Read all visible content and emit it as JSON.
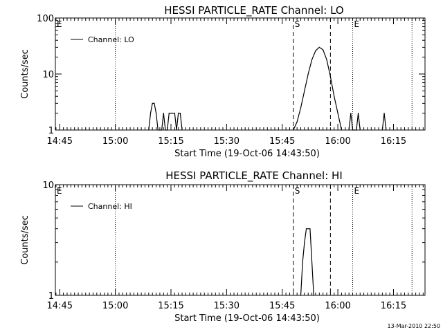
{
  "footer": {
    "timestamp": "13-Mar-2010 22:50"
  },
  "chart_data": [
    {
      "type": "line",
      "title": "HESSI PARTICLE_RATE Channel: LO",
      "xlabel": "Start Time (19-Oct-06 14:43:50)",
      "ylabel": "Counts/sec",
      "yscale": "log",
      "xlim": [
        "14:43:50",
        "16:23:30"
      ],
      "ylim": [
        1,
        100
      ],
      "x_ticks": [
        "14:45",
        "15:00",
        "15:15",
        "15:30",
        "15:45",
        "16:00",
        "16:15"
      ],
      "y_ticks": [
        "1",
        "10",
        "100"
      ],
      "legend": {
        "position": "top-left",
        "entries": [
          "Channel: LO"
        ]
      },
      "markers": [
        {
          "label": "E",
          "time": "14:43:50",
          "style": "dotted"
        },
        {
          "label": "",
          "time": "15:00",
          "style": "dotted"
        },
        {
          "label": "S",
          "time": "15:48",
          "style": "dashed"
        },
        {
          "label": "",
          "time": "15:58",
          "style": "dashed"
        },
        {
          "label": "E",
          "time": "16:04",
          "style": "dotted"
        },
        {
          "label": "",
          "time": "16:20",
          "style": "dotted"
        }
      ],
      "series": [
        {
          "name": "Channel: LO",
          "points": [
            [
              "15:09:00",
              1
            ],
            [
              "15:09:30",
              2
            ],
            [
              "15:10:00",
              3
            ],
            [
              "15:10:30",
              3
            ],
            [
              "15:11:00",
              2
            ],
            [
              "15:11:30",
              1
            ],
            [
              "15:12:30",
              1
            ],
            [
              "15:13:00",
              2
            ],
            [
              "15:13:30",
              1
            ],
            [
              "15:14:00",
              1
            ],
            [
              "15:14:30",
              2
            ],
            [
              "15:15:00",
              2
            ],
            [
              "15:15:30",
              2
            ],
            [
              "15:16:00",
              2
            ],
            [
              "15:16:30",
              1
            ],
            [
              "15:17:00",
              2
            ],
            [
              "15:17:30",
              2
            ],
            [
              "15:18:00",
              1
            ],
            [
              "15:48:00",
              1
            ],
            [
              "15:49:00",
              1.4
            ],
            [
              "15:50:00",
              2.5
            ],
            [
              "15:51:00",
              5
            ],
            [
              "15:52:00",
              10
            ],
            [
              "15:53:00",
              18
            ],
            [
              "15:54:00",
              26
            ],
            [
              "15:55:00",
              30
            ],
            [
              "15:56:00",
              27
            ],
            [
              "15:57:00",
              18
            ],
            [
              "15:58:00",
              9
            ],
            [
              "15:59:00",
              4
            ],
            [
              "16:00:00",
              2
            ],
            [
              "16:01:00",
              1
            ],
            [
              "16:03:00",
              1
            ],
            [
              "16:03:30",
              2
            ],
            [
              "16:04:00",
              1
            ],
            [
              "16:05:00",
              1
            ],
            [
              "16:05:30",
              2
            ],
            [
              "16:06:00",
              1
            ],
            [
              "16:12:00",
              1
            ],
            [
              "16:12:30",
              2
            ],
            [
              "16:13:00",
              1
            ]
          ]
        }
      ]
    },
    {
      "type": "line",
      "title": "HESSI PARTICLE_RATE Channel: HI",
      "xlabel": "Start Time (19-Oct-06 14:43:50)",
      "ylabel": "Counts/sec",
      "yscale": "log",
      "xlim": [
        "14:43:50",
        "16:23:30"
      ],
      "ylim": [
        1,
        10
      ],
      "x_ticks": [
        "14:45",
        "15:00",
        "15:15",
        "15:30",
        "15:45",
        "16:00",
        "16:15"
      ],
      "y_ticks": [
        "1",
        "10"
      ],
      "legend": {
        "position": "top-left",
        "entries": [
          "Channel: HI"
        ]
      },
      "markers": [
        {
          "label": "E",
          "time": "14:43:50",
          "style": "dotted"
        },
        {
          "label": "",
          "time": "15:00",
          "style": "dotted"
        },
        {
          "label": "S",
          "time": "15:48",
          "style": "dashed"
        },
        {
          "label": "",
          "time": "15:58",
          "style": "dashed"
        },
        {
          "label": "E",
          "time": "16:04",
          "style": "dotted"
        },
        {
          "label": "",
          "time": "16:20",
          "style": "dotted"
        }
      ],
      "series": [
        {
          "name": "Channel: HI",
          "points": [
            [
              "15:50:00",
              1
            ],
            [
              "15:50:30",
              2
            ],
            [
              "15:51:00",
              3
            ],
            [
              "15:51:30",
              4
            ],
            [
              "15:52:00",
              4
            ],
            [
              "15:52:30",
              4
            ],
            [
              "15:53:00",
              2
            ],
            [
              "15:53:30",
              1
            ]
          ]
        }
      ]
    }
  ]
}
